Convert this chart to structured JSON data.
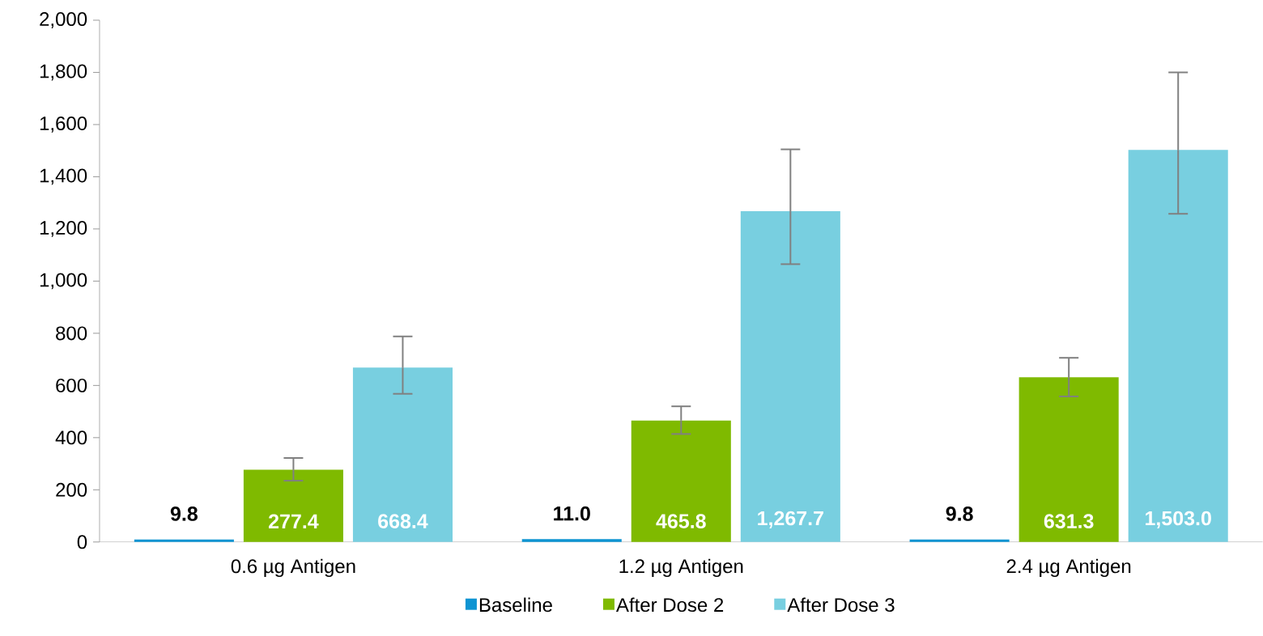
{
  "chart_data": {
    "type": "bar",
    "categories": [
      "0.6 µg Antigen",
      "1.2 µg Antigen",
      "2.4 µg Antigen"
    ],
    "series": [
      {
        "name": "Baseline",
        "color": "#0e94d2",
        "values": [
          9.8,
          11.0,
          9.8
        ],
        "value_labels": [
          "9.8",
          "11.0",
          "9.8"
        ]
      },
      {
        "name": "After Dose 2",
        "color": "#7fba00",
        "values": [
          277.4,
          465.8,
          631.3
        ],
        "value_labels": [
          "277.4",
          "465.8",
          "631.3"
        ],
        "errors": [
          [
            235,
            322
          ],
          [
            414,
            520
          ],
          [
            558,
            706
          ]
        ]
      },
      {
        "name": "After Dose 3",
        "color": "#78cfe0",
        "values": [
          668.4,
          1267.7,
          1503.0
        ],
        "value_labels": [
          "668.4",
          "1,267.7",
          "1,503.0"
        ],
        "errors": [
          [
            568,
            788
          ],
          [
            1065,
            1505
          ],
          [
            1258,
            1800
          ]
        ]
      }
    ],
    "ylim": [
      0,
      2000
    ],
    "yticks": [
      {
        "value": 0,
        "label": "0"
      },
      {
        "value": 200,
        "label": "200"
      },
      {
        "value": 400,
        "label": "400"
      },
      {
        "value": 600,
        "label": "600"
      },
      {
        "value": 800,
        "label": "800"
      },
      {
        "value": 1000,
        "label": "1,000"
      },
      {
        "value": 1200,
        "label": "1,200"
      },
      {
        "value": 1400,
        "label": "1,400"
      },
      {
        "value": 1600,
        "label": "1,600"
      },
      {
        "value": 1800,
        "label": "1,800"
      },
      {
        "value": 2000,
        "label": "2,000"
      }
    ],
    "grid": false,
    "legend": "bottom"
  }
}
